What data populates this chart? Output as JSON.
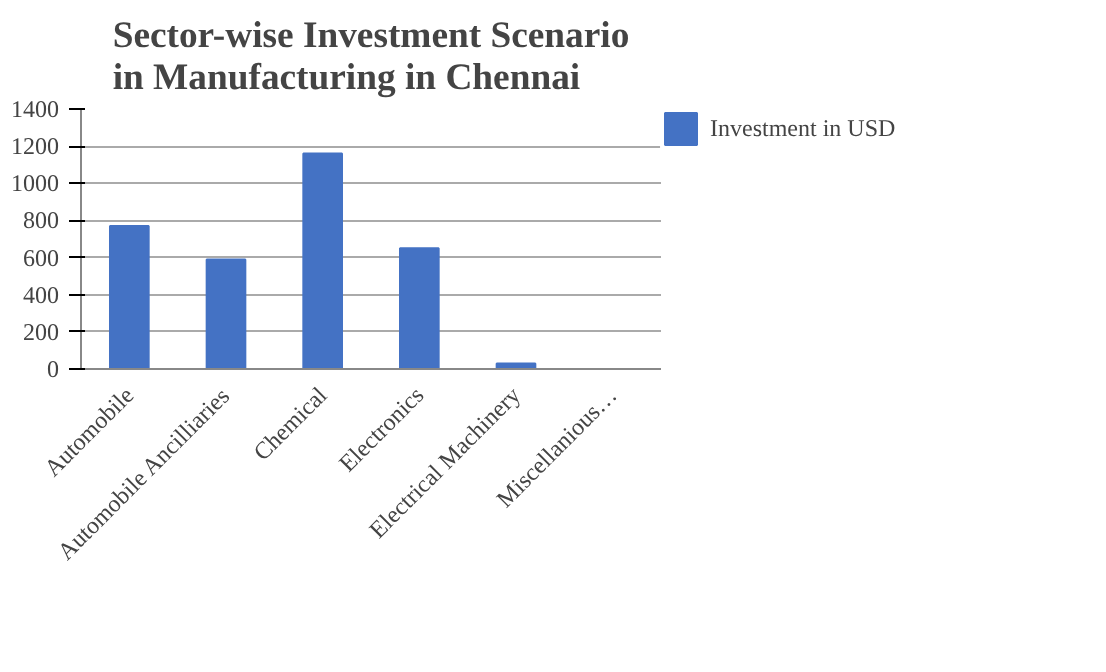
{
  "chart_data": {
    "type": "bar",
    "title": "Sector-wise Investment Scenario in Manufacturing in Chennai",
    "categories": [
      "Automobile",
      "Automobile Ancilliaries",
      "Chemical",
      "Electronics",
      "Electrical Machinery",
      "Miscellanious…"
    ],
    "series": [
      {
        "name": "Investment in USD",
        "color": "#4472c4",
        "values": [
          770,
          590,
          1160,
          650,
          30,
          0
        ]
      }
    ],
    "ylim": [
      0,
      1400
    ],
    "yticks": [
      0,
      200,
      400,
      600,
      800,
      1000,
      1200,
      1400
    ],
    "grid": "y",
    "legend": "right"
  }
}
